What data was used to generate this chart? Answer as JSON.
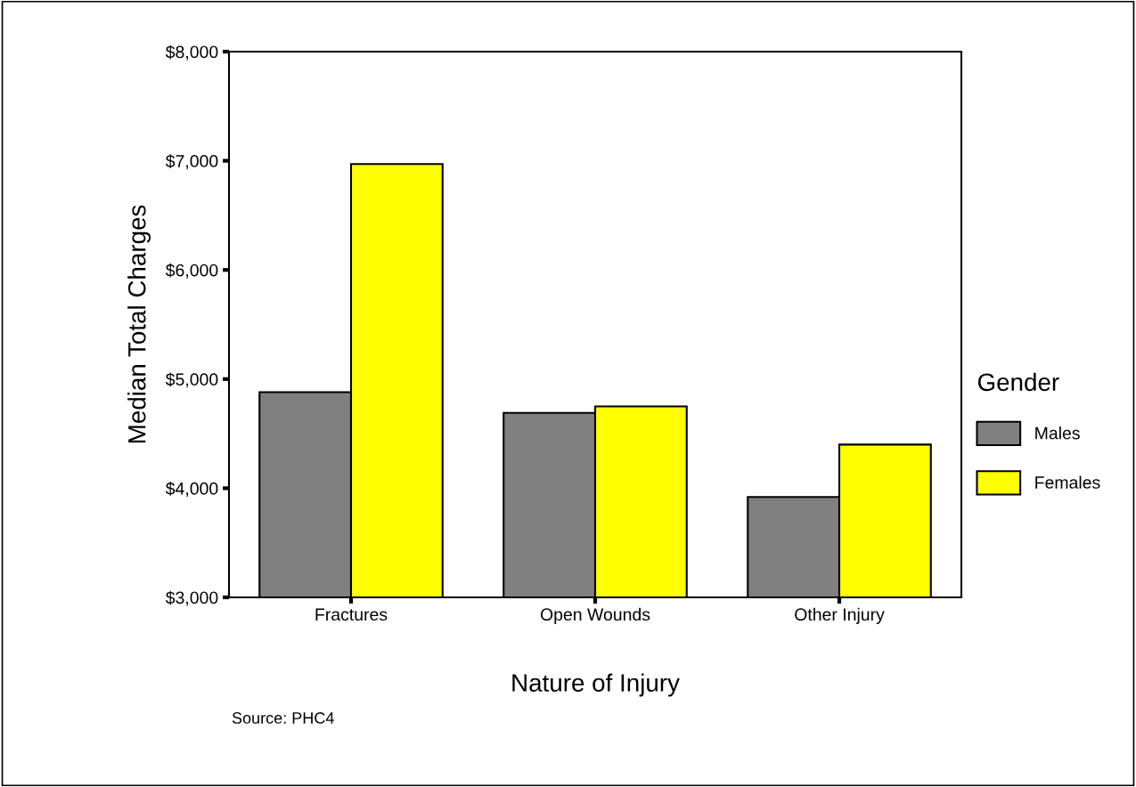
{
  "chart_data": {
    "type": "bar",
    "xlabel": "Nature of Injury",
    "ylabel": "Median Total Charges",
    "categories": [
      "Fractures",
      "Open Wounds",
      "Other Injury"
    ],
    "series": [
      {
        "name": "Males",
        "color": "#808080",
        "values": [
          4880,
          4690,
          3920
        ]
      },
      {
        "name": "Females",
        "color": "#ffff00",
        "values": [
          6970,
          4750,
          4400
        ]
      }
    ],
    "ylim": [
      3000,
      8000
    ],
    "yticks": [
      {
        "value": 3000,
        "label": "$3,000"
      },
      {
        "value": 4000,
        "label": "$4,000"
      },
      {
        "value": 5000,
        "label": "$5,000"
      },
      {
        "value": 6000,
        "label": "$6,000"
      },
      {
        "value": 7000,
        "label": "$7,000"
      },
      {
        "value": 8000,
        "label": "$8,000"
      }
    ],
    "legend": "right",
    "legend_title": "Gender",
    "grid": false,
    "annotations": [
      "Source: PHC4"
    ]
  }
}
